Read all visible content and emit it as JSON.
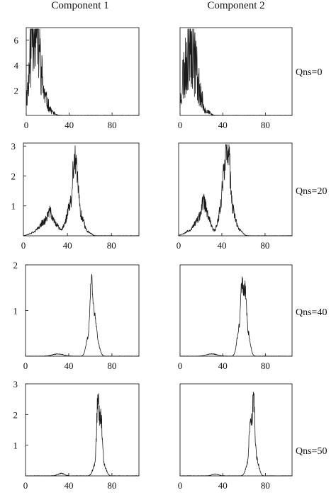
{
  "columns": [
    "Component 1",
    "Component 2"
  ],
  "rows": [
    "Qns=0",
    "Qns=20",
    "Qns=40",
    "Qns=50"
  ],
  "chart_data": [
    {
      "type": "line",
      "row_label": "Qns=0",
      "column_label": "Component 1",
      "xlim": [
        0,
        105
      ],
      "ylim": [
        0,
        7
      ],
      "xticks": [
        0,
        40,
        80
      ],
      "yticks": [
        2,
        4,
        6
      ],
      "peaks": [
        {
          "x": 3,
          "h": 2.0,
          "w": 3
        },
        {
          "x": 6,
          "h": 5.2,
          "w": 2
        },
        {
          "x": 9,
          "h": 5.4,
          "w": 2
        },
        {
          "x": 12,
          "h": 3.2,
          "w": 2
        },
        {
          "x": 15,
          "h": 1.6,
          "w": 2
        },
        {
          "x": 19,
          "h": 0.8,
          "w": 2
        },
        {
          "x": 23,
          "h": 0.3,
          "w": 3
        }
      ],
      "noise": 0.45,
      "seed": 11
    },
    {
      "type": "line",
      "row_label": "Qns=0",
      "column_label": "Component 2",
      "xlim": [
        0,
        105
      ],
      "ylim": [
        0,
        7
      ],
      "xticks": [
        0,
        40,
        80
      ],
      "yticks": [],
      "peaks": [
        {
          "x": 3,
          "h": 3.0,
          "w": 2
        },
        {
          "x": 8,
          "h": 5.8,
          "w": 2
        },
        {
          "x": 12,
          "h": 4.8,
          "w": 2
        },
        {
          "x": 16,
          "h": 2.6,
          "w": 2
        },
        {
          "x": 20,
          "h": 1.0,
          "w": 2
        },
        {
          "x": 25,
          "h": 0.3,
          "w": 3
        }
      ],
      "noise": 0.5,
      "seed": 23
    },
    {
      "type": "line",
      "row_label": "Qns=20",
      "column_label": "Component 1",
      "xlim": [
        0,
        105
      ],
      "ylim": [
        0,
        3.1
      ],
      "xticks": [
        0,
        40,
        80
      ],
      "yticks": [
        1,
        2,
        3
      ],
      "peaks": [
        {
          "x": 12,
          "h": 0.15,
          "w": 5
        },
        {
          "x": 18,
          "h": 0.35,
          "w": 3
        },
        {
          "x": 24,
          "h": 0.7,
          "w": 2.5
        },
        {
          "x": 30,
          "h": 0.35,
          "w": 3
        },
        {
          "x": 38,
          "h": 0.4,
          "w": 2
        },
        {
          "x": 42,
          "h": 0.9,
          "w": 1.8
        },
        {
          "x": 46,
          "h": 2.2,
          "w": 1.5
        },
        {
          "x": 49,
          "h": 1.6,
          "w": 1.5
        },
        {
          "x": 53,
          "h": 0.6,
          "w": 2
        },
        {
          "x": 58,
          "h": 0.15,
          "w": 3
        }
      ],
      "noise": 0.18,
      "seed": 37
    },
    {
      "type": "line",
      "row_label": "Qns=20",
      "column_label": "Component 2",
      "xlim": [
        0,
        105
      ],
      "ylim": [
        0,
        3.1
      ],
      "xticks": [
        0,
        40,
        80
      ],
      "yticks": [],
      "peaks": [
        {
          "x": 10,
          "h": 0.15,
          "w": 5
        },
        {
          "x": 17,
          "h": 0.4,
          "w": 3
        },
        {
          "x": 23,
          "h": 0.95,
          "w": 2.5
        },
        {
          "x": 28,
          "h": 0.45,
          "w": 3
        },
        {
          "x": 37,
          "h": 0.5,
          "w": 2
        },
        {
          "x": 41,
          "h": 1.5,
          "w": 1.8
        },
        {
          "x": 44,
          "h": 2.3,
          "w": 1.5
        },
        {
          "x": 47,
          "h": 2.0,
          "w": 1.5
        },
        {
          "x": 51,
          "h": 0.7,
          "w": 2
        },
        {
          "x": 56,
          "h": 0.2,
          "w": 3
        }
      ],
      "noise": 0.18,
      "seed": 53
    },
    {
      "type": "line",
      "row_label": "Qns=40",
      "column_label": "Component 1",
      "xlim": [
        0,
        105
      ],
      "ylim": [
        0,
        2
      ],
      "xticks": [
        0,
        40,
        80
      ],
      "yticks": [
        1,
        2
      ],
      "peaks": [
        {
          "x": 30,
          "h": 0.05,
          "w": 5
        },
        {
          "x": 58,
          "h": 0.4,
          "w": 2
        },
        {
          "x": 61,
          "h": 1.45,
          "w": 1.2
        },
        {
          "x": 64,
          "h": 0.8,
          "w": 1.5
        },
        {
          "x": 67,
          "h": 0.25,
          "w": 2
        }
      ],
      "noise": 0.08,
      "seed": 71
    },
    {
      "type": "line",
      "row_label": "Qns=40",
      "column_label": "Component 2",
      "xlim": [
        0,
        105
      ],
      "ylim": [
        0,
        2
      ],
      "xticks": [
        0,
        40,
        80
      ],
      "yticks": [],
      "peaks": [
        {
          "x": 30,
          "h": 0.05,
          "w": 5
        },
        {
          "x": 55,
          "h": 0.5,
          "w": 2
        },
        {
          "x": 58,
          "h": 1.3,
          "w": 1.3
        },
        {
          "x": 61,
          "h": 1.25,
          "w": 1.3
        },
        {
          "x": 64,
          "h": 0.45,
          "w": 2
        }
      ],
      "noise": 0.1,
      "seed": 89
    },
    {
      "type": "line",
      "row_label": "Qns=50",
      "column_label": "Component 1",
      "xlim": [
        0,
        105
      ],
      "ylim": [
        0,
        3
      ],
      "xticks": [
        0,
        40,
        80
      ],
      "yticks": [
        1,
        2,
        3
      ],
      "peaks": [
        {
          "x": 33,
          "h": 0.08,
          "w": 3
        },
        {
          "x": 64,
          "h": 0.3,
          "w": 2
        },
        {
          "x": 67,
          "h": 2.3,
          "w": 1.2
        },
        {
          "x": 70,
          "h": 1.7,
          "w": 1.2
        },
        {
          "x": 73,
          "h": 0.3,
          "w": 2
        }
      ],
      "noise": 0.12,
      "seed": 97
    },
    {
      "type": "line",
      "row_label": "Qns=50",
      "column_label": "Component 2",
      "xlim": [
        0,
        105
      ],
      "ylim": [
        0,
        3
      ],
      "xticks": [
        0,
        40,
        80
      ],
      "yticks": [],
      "peaks": [
        {
          "x": 33,
          "h": 0.06,
          "w": 3
        },
        {
          "x": 63,
          "h": 0.3,
          "w": 2
        },
        {
          "x": 66,
          "h": 1.6,
          "w": 1.3
        },
        {
          "x": 69,
          "h": 2.2,
          "w": 1.2
        },
        {
          "x": 72,
          "h": 0.5,
          "w": 2
        }
      ],
      "noise": 0.12,
      "seed": 113
    }
  ]
}
